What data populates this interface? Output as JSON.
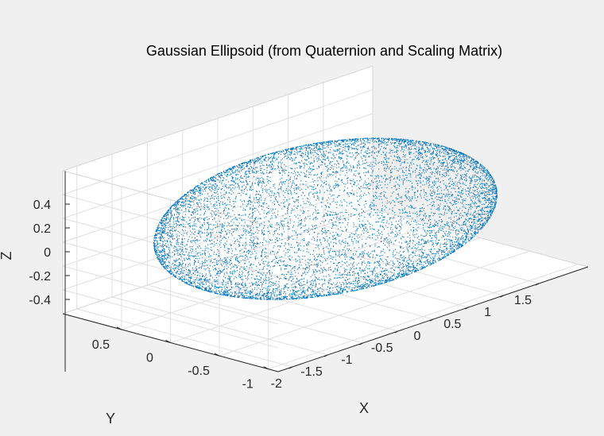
{
  "chart_data": {
    "type": "scatter",
    "title": "Gaussian Ellipsoid (from Quaternion and Scaling Matrix)",
    "xlabel": "X",
    "ylabel": "Y",
    "zlabel": "Z",
    "xlim": [
      -2.2,
      2.2
    ],
    "ylim": [
      -1.1,
      1.1
    ],
    "zlim": [
      -0.6,
      0.6
    ],
    "x_ticks": [
      "-2",
      "-1.5",
      "-1",
      "-0.5",
      "0",
      "0.5",
      "1",
      "1.5"
    ],
    "y_ticks": [
      "-1",
      "-0.5",
      "0",
      "0.5"
    ],
    "z_ticks": [
      "-0.4",
      "-0.2",
      "0",
      "0.2",
      "0.4"
    ],
    "grid": true,
    "view": "3d",
    "series": [
      {
        "distribution": "points sampled on ellipsoid surface",
        "semi_axes": [
          2.0,
          1.0,
          0.5
        ],
        "point_count": 10000,
        "color": "#0072bd"
      }
    ]
  },
  "colors": {
    "figure_background": "#f0f0f0",
    "axes_background": "#ffffff",
    "grid": "#e0e0e0",
    "axis_line": "#262626",
    "points": "#0072bd"
  }
}
